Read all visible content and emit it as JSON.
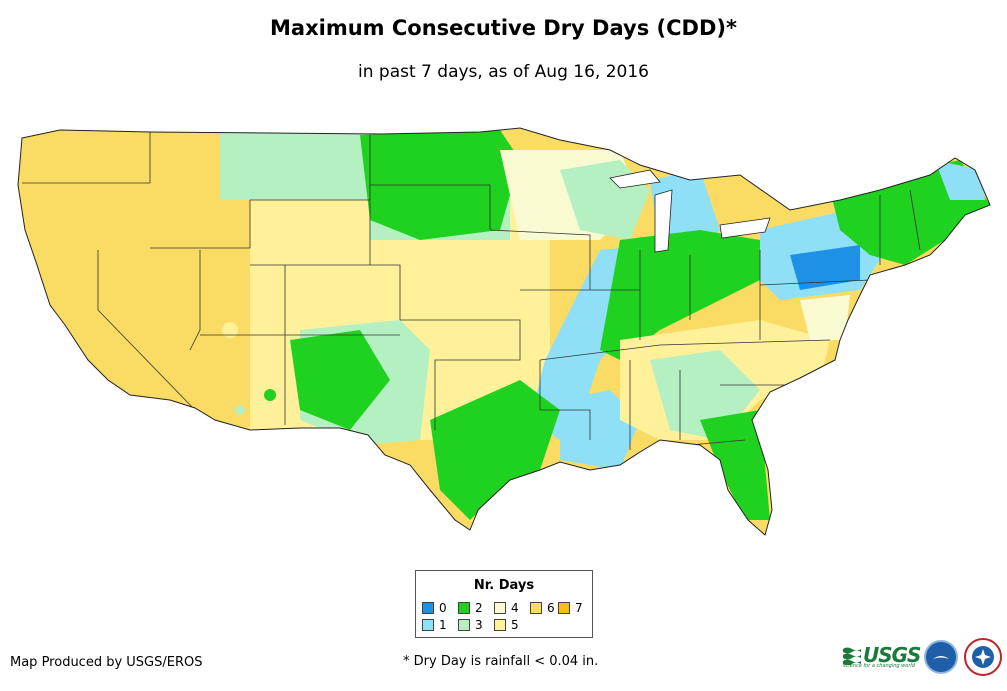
{
  "title": "Maximum Consecutive Dry Days (CDD)*",
  "subtitle": "in past 7 days, as of Aug 16, 2016",
  "legend": {
    "title": "Nr. Days",
    "items": [
      {
        "label": "0",
        "color": "#1e90e6"
      },
      {
        "label": "1",
        "color": "#8fe0f7"
      },
      {
        "label": "2",
        "color": "#1fd21f"
      },
      {
        "label": "3",
        "color": "#b4f0c2"
      },
      {
        "label": "4",
        "color": "#fafad2"
      },
      {
        "label": "5",
        "color": "#fff09a"
      },
      {
        "label": "6",
        "color": "#fadc64"
      },
      {
        "label": "7",
        "color": "#f5be14"
      }
    ]
  },
  "footer": {
    "producer": "Map Produced by USGS/EROS",
    "note": "* Dry Day is rainfall < 0.04 in."
  },
  "logos": {
    "usgs": "USGS",
    "usgs_tagline": "science for a changing world"
  }
}
